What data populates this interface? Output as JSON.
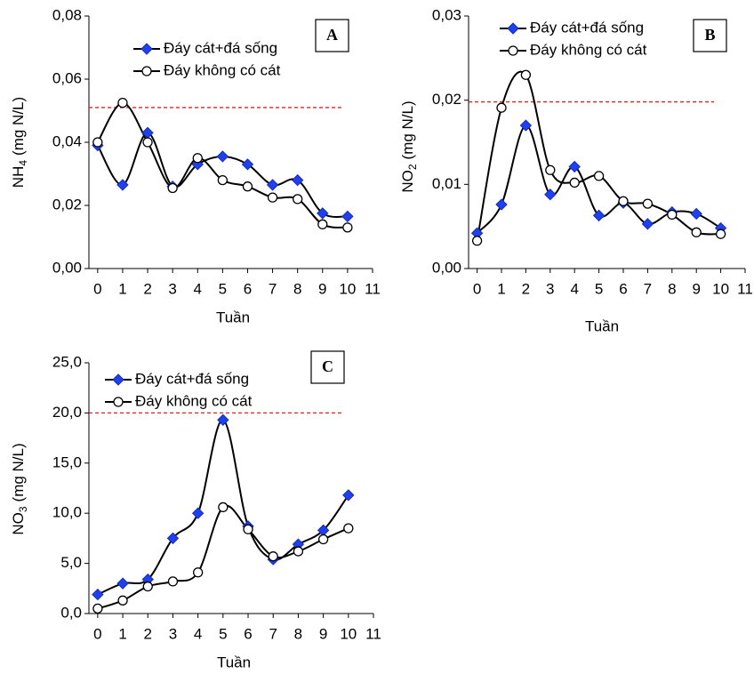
{
  "chart_data": [
    {
      "type": "line",
      "panel": "A",
      "ylabel": [
        "NH",
        "4",
        "(mg N/L)"
      ],
      "xlabel": "Tuần",
      "x": [
        0,
        1,
        2,
        3,
        4,
        5,
        6,
        7,
        8,
        9,
        10
      ],
      "series": [
        {
          "name": "Đáy cát+đá sống",
          "color": "#1f3ff0",
          "marker": "diamond",
          "values": [
            0.039,
            0.0265,
            0.043,
            0.026,
            0.033,
            0.0355,
            0.033,
            0.0265,
            0.028,
            0.0175,
            0.0165
          ]
        },
        {
          "name": "Đáy không có cát",
          "color": "#ffffff",
          "marker": "circle",
          "values": [
            0.04,
            0.0525,
            0.04,
            0.0255,
            0.035,
            0.028,
            0.026,
            0.0225,
            0.022,
            0.014,
            0.013
          ]
        }
      ],
      "xlim": [
        -0.35,
        11
      ],
      "xticks": [
        0,
        1,
        2,
        3,
        4,
        5,
        6,
        7,
        8,
        9,
        10,
        11
      ],
      "ylim": [
        0,
        0.08
      ],
      "yticks": [
        {
          "value": 0,
          "label": "0,00"
        },
        {
          "value": 0.02,
          "label": "0,02"
        },
        {
          "value": 0.04,
          "label": "0,04"
        },
        {
          "value": 0.06,
          "label": "0,06"
        },
        {
          "value": 0.08,
          "label": "0,08"
        }
      ],
      "reference_line": 0.051,
      "reference_color": "#e02020"
    },
    {
      "type": "line",
      "panel": "B",
      "ylabel": [
        "NO",
        "2",
        "(mg N/L)"
      ],
      "xlabel": "Tuần",
      "x": [
        0,
        1,
        2,
        3,
        4,
        5,
        6,
        7,
        8,
        9,
        10
      ],
      "series": [
        {
          "name": "Đáy cát+đá sống",
          "color": "#1f3ff0",
          "marker": "diamond",
          "values": [
            0.0042,
            0.0076,
            0.017,
            0.0088,
            0.0121,
            0.0063,
            0.0078,
            0.0053,
            0.0067,
            0.0065,
            0.0048
          ]
        },
        {
          "name": "Đáy không có cát",
          "color": "#ffffff",
          "marker": "circle",
          "values": [
            0.0033,
            0.0191,
            0.023,
            0.0117,
            0.0102,
            0.011,
            0.008,
            0.0077,
            0.0064,
            0.0043,
            0.0041
          ]
        }
      ],
      "xlim": [
        -0.35,
        11
      ],
      "xticks": [
        0,
        1,
        2,
        3,
        4,
        5,
        6,
        7,
        8,
        9,
        10,
        11
      ],
      "ylim": [
        0,
        0.03
      ],
      "yticks": [
        {
          "value": 0,
          "label": "0,00"
        },
        {
          "value": 0.01,
          "label": "0,01"
        },
        {
          "value": 0.02,
          "label": "0,02"
        },
        {
          "value": 0.03,
          "label": "0,03"
        }
      ],
      "reference_line": 0.0198,
      "reference_color": "#e02020"
    },
    {
      "type": "line",
      "panel": "C",
      "ylabel": [
        "NO",
        "3",
        "(mg N/L)"
      ],
      "xlabel": "Tuần",
      "x": [
        0,
        1,
        2,
        3,
        4,
        5,
        6,
        7,
        8,
        9,
        10
      ],
      "series": [
        {
          "name": "Đáy cát+đá sống",
          "color": "#1f3ff0",
          "marker": "diamond",
          "values": [
            1.9,
            3.0,
            3.4,
            7.5,
            10.0,
            19.3,
            8.7,
            5.4,
            6.9,
            8.3,
            11.8
          ]
        },
        {
          "name": "Đáy không có cát",
          "color": "#ffffff",
          "marker": "circle",
          "values": [
            0.5,
            1.3,
            2.7,
            3.2,
            4.1,
            10.6,
            8.4,
            5.7,
            6.2,
            7.4,
            8.5
          ]
        }
      ],
      "xlim": [
        -0.35,
        11
      ],
      "xticks": [
        0,
        1,
        2,
        3,
        4,
        5,
        6,
        7,
        8,
        9,
        10,
        11
      ],
      "ylim": [
        0,
        25
      ],
      "yticks": [
        {
          "value": 0,
          "label": "0,0"
        },
        {
          "value": 5,
          "label": "5,0"
        },
        {
          "value": 10,
          "label": "10,0"
        },
        {
          "value": 15,
          "label": "15,0"
        },
        {
          "value": 20,
          "label": "20,0"
        },
        {
          "value": 25,
          "label": "25,0"
        }
      ],
      "reference_line": 20,
      "reference_color": "#e02020"
    }
  ]
}
